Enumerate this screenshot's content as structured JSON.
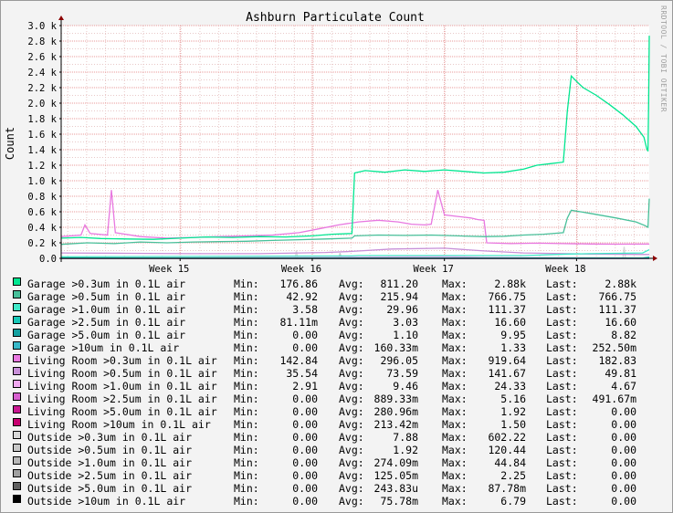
{
  "watermark": "RRDTOOL / TOBI OETIKER",
  "labels": {
    "min": "Min:",
    "avg": "Avg:",
    "max": "Max:",
    "last": "Last:"
  },
  "chart_data": {
    "type": "line",
    "title": "Ashburn Particulate Count",
    "ylabel": "Count",
    "ylim": [
      0,
      3000
    ],
    "yticks": [
      0,
      200,
      400,
      600,
      800,
      1000,
      1200,
      1400,
      1600,
      1800,
      2000,
      2200,
      2400,
      2600,
      2800,
      3000
    ],
    "ytick_labels": [
      "0.0",
      "0.2 k",
      "0.4 k",
      "0.6 k",
      "0.8 k",
      "1.0 k",
      "1.2 k",
      "1.4 k",
      "1.6 k",
      "1.8 k",
      "2.0 k",
      "2.2 k",
      "2.4 k",
      "2.6 k",
      "2.8 k",
      "3.0 k"
    ],
    "xlim": [
      0,
      4.45
    ],
    "xticks": [
      {
        "x": 0.9,
        "label": "Week 15"
      },
      {
        "x": 1.9,
        "label": "Week 16"
      },
      {
        "x": 2.9,
        "label": "Week 17"
      },
      {
        "x": 3.9,
        "label": "Week 18"
      }
    ],
    "grid": true,
    "legend_position": "bottom",
    "series": [
      {
        "name": "Garage >0.3um in 0.1L air",
        "color": "#00e690",
        "min": "176.86",
        "avg": "811.20",
        "max": "2.88k",
        "last": "2.88k",
        "points": [
          [
            0,
            260
          ],
          [
            0.15,
            270
          ],
          [
            0.3,
            255
          ],
          [
            0.5,
            250
          ],
          [
            0.7,
            245
          ],
          [
            0.9,
            260
          ],
          [
            1.1,
            275
          ],
          [
            1.3,
            270
          ],
          [
            1.5,
            280
          ],
          [
            1.7,
            275
          ],
          [
            1.9,
            290
          ],
          [
            2.05,
            310
          ],
          [
            2.2,
            320
          ],
          [
            2.22,
            1100
          ],
          [
            2.3,
            1130
          ],
          [
            2.45,
            1110
          ],
          [
            2.6,
            1140
          ],
          [
            2.75,
            1120
          ],
          [
            2.9,
            1140
          ],
          [
            3.05,
            1120
          ],
          [
            3.2,
            1100
          ],
          [
            3.35,
            1110
          ],
          [
            3.5,
            1150
          ],
          [
            3.6,
            1200
          ],
          [
            3.7,
            1220
          ],
          [
            3.8,
            1240
          ],
          [
            3.83,
            1900
          ],
          [
            3.86,
            2350
          ],
          [
            3.9,
            2280
          ],
          [
            3.95,
            2200
          ],
          [
            4.05,
            2100
          ],
          [
            4.15,
            1980
          ],
          [
            4.25,
            1850
          ],
          [
            4.35,
            1700
          ],
          [
            4.41,
            1560
          ],
          [
            4.43,
            1420
          ],
          [
            4.44,
            1380
          ],
          [
            4.445,
            2000
          ],
          [
            4.45,
            2870
          ]
        ]
      },
      {
        "name": "Garage >0.5um in 0.1L air",
        "color": "#48c09a",
        "min": "42.92",
        "avg": "215.94",
        "max": "766.75",
        "last": "766.75",
        "points": [
          [
            0,
            180
          ],
          [
            0.2,
            200
          ],
          [
            0.4,
            190
          ],
          [
            0.6,
            210
          ],
          [
            0.8,
            200
          ],
          [
            1.0,
            210
          ],
          [
            1.2,
            215
          ],
          [
            1.4,
            220
          ],
          [
            1.6,
            230
          ],
          [
            1.8,
            240
          ],
          [
            2.0,
            250
          ],
          [
            2.2,
            260
          ],
          [
            2.22,
            290
          ],
          [
            2.4,
            300
          ],
          [
            2.6,
            295
          ],
          [
            2.8,
            300
          ],
          [
            3.0,
            290
          ],
          [
            3.2,
            280
          ],
          [
            3.35,
            285
          ],
          [
            3.5,
            300
          ],
          [
            3.65,
            310
          ],
          [
            3.8,
            330
          ],
          [
            3.83,
            520
          ],
          [
            3.86,
            620
          ],
          [
            4.0,
            580
          ],
          [
            4.2,
            520
          ],
          [
            4.35,
            470
          ],
          [
            4.42,
            420
          ],
          [
            4.44,
            400
          ],
          [
            4.45,
            770
          ]
        ]
      },
      {
        "name": "Garage >1.0um in 0.1L air",
        "color": "#40e8c8",
        "min": "3.58",
        "avg": "29.96",
        "max": "111.37",
        "last": "111.37",
        "points": [
          [
            0,
            20
          ],
          [
            1.0,
            25
          ],
          [
            2.2,
            30
          ],
          [
            2.25,
            35
          ],
          [
            3.5,
            35
          ],
          [
            3.84,
            55
          ],
          [
            4.0,
            60
          ],
          [
            4.4,
            70
          ],
          [
            4.45,
            110
          ]
        ]
      },
      {
        "name": "Garage >2.5um in 0.1L air",
        "color": "#18c8b8",
        "min": "81.11m",
        "avg": "3.03",
        "max": "16.60",
        "last": "16.60",
        "points": [
          [
            0,
            3
          ],
          [
            2.2,
            3
          ],
          [
            3.8,
            4
          ],
          [
            4.4,
            5
          ],
          [
            4.45,
            16
          ]
        ]
      },
      {
        "name": "Garage >5.0um in 0.1L air",
        "color": "#14a0a0",
        "min": "0.00",
        "avg": "1.10",
        "max": "9.95",
        "last": "8.82",
        "points": [
          [
            0,
            1
          ],
          [
            2.2,
            1
          ],
          [
            4.4,
            2
          ],
          [
            4.45,
            9
          ]
        ]
      },
      {
        "name": "Garage >10um in 0.1L air",
        "color": "#38b8c8",
        "min": "0.00",
        "avg": "160.33m",
        "max": "1.33",
        "last": "252.50m",
        "points": [
          [
            0,
            0.2
          ],
          [
            4.45,
            0.25
          ]
        ]
      },
      {
        "name": "Living Room >0.3um in 0.1L air",
        "color": "#e878e0",
        "min": "142.84",
        "avg": "296.05",
        "max": "919.64",
        "last": "182.83",
        "points": [
          [
            0,
            280
          ],
          [
            0.15,
            300
          ],
          [
            0.18,
            430
          ],
          [
            0.22,
            320
          ],
          [
            0.35,
            300
          ],
          [
            0.38,
            880
          ],
          [
            0.41,
            330
          ],
          [
            0.6,
            280
          ],
          [
            0.8,
            260
          ],
          [
            1.0,
            270
          ],
          [
            1.2,
            280
          ],
          [
            1.4,
            290
          ],
          [
            1.6,
            300
          ],
          [
            1.8,
            330
          ],
          [
            1.95,
            380
          ],
          [
            2.1,
            430
          ],
          [
            2.25,
            470
          ],
          [
            2.4,
            490
          ],
          [
            2.55,
            470
          ],
          [
            2.65,
            440
          ],
          [
            2.75,
            430
          ],
          [
            2.8,
            440
          ],
          [
            2.85,
            880
          ],
          [
            2.9,
            560
          ],
          [
            3.0,
            540
          ],
          [
            3.1,
            520
          ],
          [
            3.15,
            500
          ],
          [
            3.2,
            490
          ],
          [
            3.22,
            200
          ],
          [
            3.4,
            190
          ],
          [
            3.6,
            195
          ],
          [
            3.8,
            190
          ],
          [
            4.0,
            185
          ],
          [
            4.2,
            182
          ],
          [
            4.45,
            183
          ]
        ]
      },
      {
        "name": "Living Room >0.5um in 0.1L air",
        "color": "#c890d8",
        "min": "35.54",
        "avg": "73.59",
        "max": "141.67",
        "last": "49.81",
        "points": [
          [
            0,
            70
          ],
          [
            0.5,
            65
          ],
          [
            1.0,
            60
          ],
          [
            1.5,
            60
          ],
          [
            2.0,
            75
          ],
          [
            2.2,
            90
          ],
          [
            2.5,
            120
          ],
          [
            2.9,
            130
          ],
          [
            3.2,
            95
          ],
          [
            3.5,
            70
          ],
          [
            4.0,
            55
          ],
          [
            4.45,
            50
          ]
        ]
      },
      {
        "name": "Living Room >1.0um in 0.1L air",
        "color": "#f0a8f0",
        "min": "2.91",
        "avg": "9.46",
        "max": "24.33",
        "last": "4.67",
        "points": [
          [
            0,
            8
          ],
          [
            1.0,
            7
          ],
          [
            2.2,
            14
          ],
          [
            2.9,
            22
          ],
          [
            3.2,
            12
          ],
          [
            4.45,
            5
          ]
        ]
      },
      {
        "name": "Living Room >2.5um in 0.1L air",
        "color": "#d860d0",
        "min": "0.00",
        "avg": "889.33m",
        "max": "5.16",
        "last": "491.67m",
        "points": [
          [
            0,
            1
          ],
          [
            2.5,
            1.5
          ],
          [
            4.45,
            0.5
          ]
        ]
      },
      {
        "name": "Living Room >5.0um in 0.1L air",
        "color": "#c81890",
        "min": "0.00",
        "avg": "280.96m",
        "max": "1.92",
        "last": "0.00",
        "points": [
          [
            0,
            0.3
          ],
          [
            4.45,
            0
          ]
        ]
      },
      {
        "name": "Living Room >10um in 0.1L air",
        "color": "#c80070",
        "min": "0.00",
        "avg": "213.42m",
        "max": "1.50",
        "last": "0.00",
        "points": [
          [
            0,
            0.2
          ],
          [
            4.45,
            0
          ]
        ]
      },
      {
        "name": "Outside >0.3um in 0.1L air",
        "color": "#d8d8d8",
        "min": "0.00",
        "avg": "7.88",
        "max": "602.22",
        "last": "0.00",
        "points": [
          [
            0,
            0
          ],
          [
            1.77,
            0
          ],
          [
            1.78,
            100
          ],
          [
            1.79,
            0
          ],
          [
            4.25,
            0
          ],
          [
            4.26,
            150
          ],
          [
            4.27,
            0
          ],
          [
            4.45,
            0
          ]
        ]
      },
      {
        "name": "Outside >0.5um in 0.1L air",
        "color": "#c8c8c8",
        "min": "0.00",
        "avg": "1.92",
        "max": "120.44",
        "last": "0.00",
        "points": [
          [
            0,
            0
          ],
          [
            2.1,
            0
          ],
          [
            2.11,
            70
          ],
          [
            2.12,
            0
          ],
          [
            4.45,
            0
          ]
        ]
      },
      {
        "name": "Outside >1.0um in 0.1L air",
        "color": "#b8b8b8",
        "min": "0.00",
        "avg": "274.09m",
        "max": "44.84",
        "last": "0.00",
        "points": [
          [
            0,
            0
          ],
          [
            4.45,
            0
          ]
        ]
      },
      {
        "name": "Outside >2.5um in 0.1L air",
        "color": "#a0a0a0",
        "min": "0.00",
        "avg": "125.05m",
        "max": "2.25",
        "last": "0.00",
        "points": [
          [
            0,
            0
          ],
          [
            4.45,
            0
          ]
        ]
      },
      {
        "name": "Outside >5.0um in 0.1L air",
        "color": "#606060",
        "min": "0.00",
        "avg": "243.83u",
        "max": "87.78m",
        "last": "0.00",
        "points": [
          [
            0,
            0
          ],
          [
            4.45,
            0
          ]
        ]
      },
      {
        "name": "Outside >10um in 0.1L air",
        "color": "#000000",
        "min": "0.00",
        "avg": "75.78m",
        "max": "6.79",
        "last": "0.00",
        "points": [
          [
            0,
            0
          ],
          [
            4.45,
            0
          ]
        ]
      }
    ]
  }
}
